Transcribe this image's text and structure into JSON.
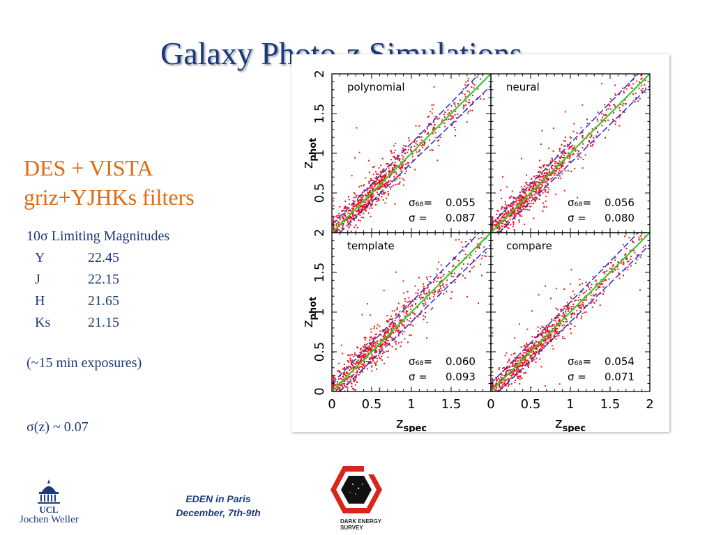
{
  "slide": {
    "title": "Galaxy Photo-z Simulations",
    "subtitle_line1": "DES + VISTA",
    "subtitle_line2": "griz+YJHKs filters",
    "limiting_title": "10σ Limiting Magnitudes",
    "magnitudes": [
      {
        "band": "Y",
        "value": "22.45"
      },
      {
        "band": "J",
        "value": "22.15"
      },
      {
        "band": "H",
        "value": "21.65"
      },
      {
        "band": "Ks",
        "value": "21.15"
      }
    ],
    "exposure_note": "(~15 min exposures)",
    "sigma_summary": "σ(z) ~ 0.07",
    "author": "Jochen Weller",
    "event_line1": "EDEN in Paris",
    "event_line2": "December, 7th-9th",
    "ucl_logo_text": "UCL",
    "des_logo_text_line1": "DARK ENERGY",
    "des_logo_text_line2": "SURVEY"
  },
  "colors": {
    "title": "#1c3a7a",
    "accent_orange": "#e06a12",
    "scatter_red": "#e8131b",
    "median_green": "#33cc33",
    "band_blue": "#1a2fd6",
    "des_red": "#d9261c"
  },
  "chart_data": {
    "type": "scatter",
    "x_ticks": [
      "0",
      "0.5",
      "1",
      "1.5",
      "2"
    ],
    "y_ticks": [
      "0",
      "0.5",
      "1",
      "1.5",
      "2"
    ],
    "xlim": [
      0,
      2
    ],
    "ylim": [
      0,
      2
    ],
    "panels": [
      {
        "name": "polynomial",
        "sigma68_label": "σ₆₈=",
        "sigma68": "0.055",
        "sigma_label": "σ  =",
        "sigma": "0.087",
        "spread": 0.09
      },
      {
        "name": "neural",
        "sigma68_label": "σ₆₈=",
        "sigma68": "0.056",
        "sigma_label": "σ  =",
        "sigma": "0.080",
        "spread": 0.085
      },
      {
        "name": "template",
        "sigma68_label": "σ₆₈=",
        "sigma68": "0.060",
        "sigma_label": "σ  =",
        "sigma": "0.093",
        "spread": 0.095
      },
      {
        "name": "compare",
        "sigma68_label": "σ₆₈=",
        "sigma68": "0.054",
        "sigma_label": "σ  =",
        "sigma": "0.071",
        "spread": 0.075
      }
    ]
  }
}
